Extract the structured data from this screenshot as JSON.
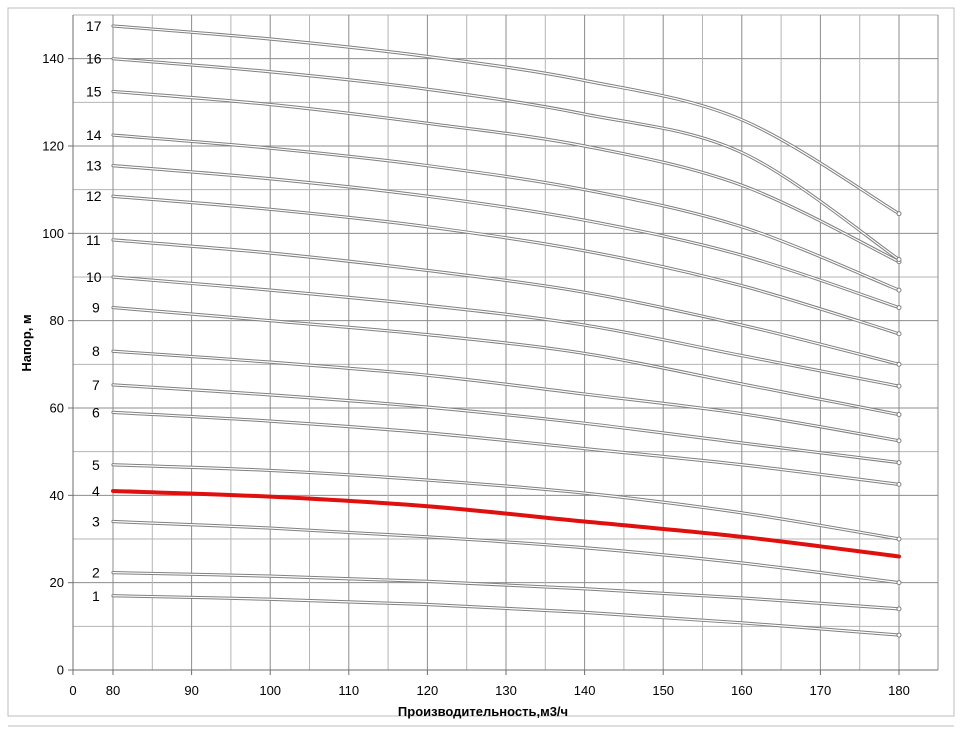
{
  "chart_data": {
    "type": "line",
    "xlabel": "Производительность,м3/ч",
    "ylabel": "Напор, м",
    "xlim": [
      0,
      180
    ],
    "ylim": [
      0,
      150
    ],
    "x_ticks": [
      "0",
      "80",
      "90",
      "100",
      "110",
      "120",
      "130",
      "140",
      "150",
      "160",
      "170",
      "180"
    ],
    "y_ticks": [
      "0",
      "20",
      "40",
      "60",
      "80",
      "100",
      "120",
      "140"
    ],
    "grid": true,
    "highlight_color": "#e0100f",
    "line_color": "#808080",
    "x": [
      80,
      100,
      120,
      140,
      160,
      180
    ],
    "series": [
      {
        "name": "1",
        "values": [
          17,
          16.2,
          15,
          13.2,
          10.8,
          8
        ]
      },
      {
        "name": "2",
        "values": [
          22.3,
          21.5,
          20.3,
          18.6,
          16.5,
          14
        ]
      },
      {
        "name": "3",
        "values": [
          34,
          32.5,
          30.5,
          28,
          24.5,
          20
        ]
      },
      {
        "name": "4",
        "values": [
          41,
          39.7,
          37.5,
          34,
          30.5,
          26
        ],
        "highlight": true
      },
      {
        "name": "5",
        "values": [
          47,
          45.7,
          43.5,
          40.5,
          36,
          30
        ]
      },
      {
        "name": "6",
        "values": [
          59,
          57,
          54.3,
          50.7,
          47,
          42.5
        ]
      },
      {
        "name": "7",
        "values": [
          65.3,
          63,
          60.2,
          56.5,
          52,
          47.5
        ]
      },
      {
        "name": "8",
        "values": [
          73,
          70.5,
          67.5,
          63.2,
          58.7,
          52.5
        ]
      },
      {
        "name": "9",
        "values": [
          83,
          80,
          76.8,
          72.5,
          65.5,
          58.5
        ]
      },
      {
        "name": "10",
        "values": [
          90,
          87,
          83.5,
          79,
          72,
          65
        ]
      },
      {
        "name": "11",
        "values": [
          98.5,
          95.5,
          91.5,
          86.5,
          79,
          70
        ]
      },
      {
        "name": "12",
        "values": [
          108.5,
          105.5,
          101.5,
          96,
          88,
          77
        ]
      },
      {
        "name": "13",
        "values": [
          115.5,
          112.5,
          108.5,
          103,
          95,
          83
        ]
      },
      {
        "name": "14",
        "values": [
          122.5,
          119.5,
          115.5,
          110,
          101.5,
          87
        ]
      },
      {
        "name": "15",
        "values": [
          132.5,
          129.5,
          125.2,
          120,
          111,
          93.5
        ]
      },
      {
        "name": "16",
        "values": [
          140,
          137,
          133,
          127.3,
          118.5,
          94
        ]
      },
      {
        "name": "17",
        "values": [
          147.5,
          144.5,
          140.5,
          135,
          126,
          104.5
        ]
      }
    ]
  }
}
